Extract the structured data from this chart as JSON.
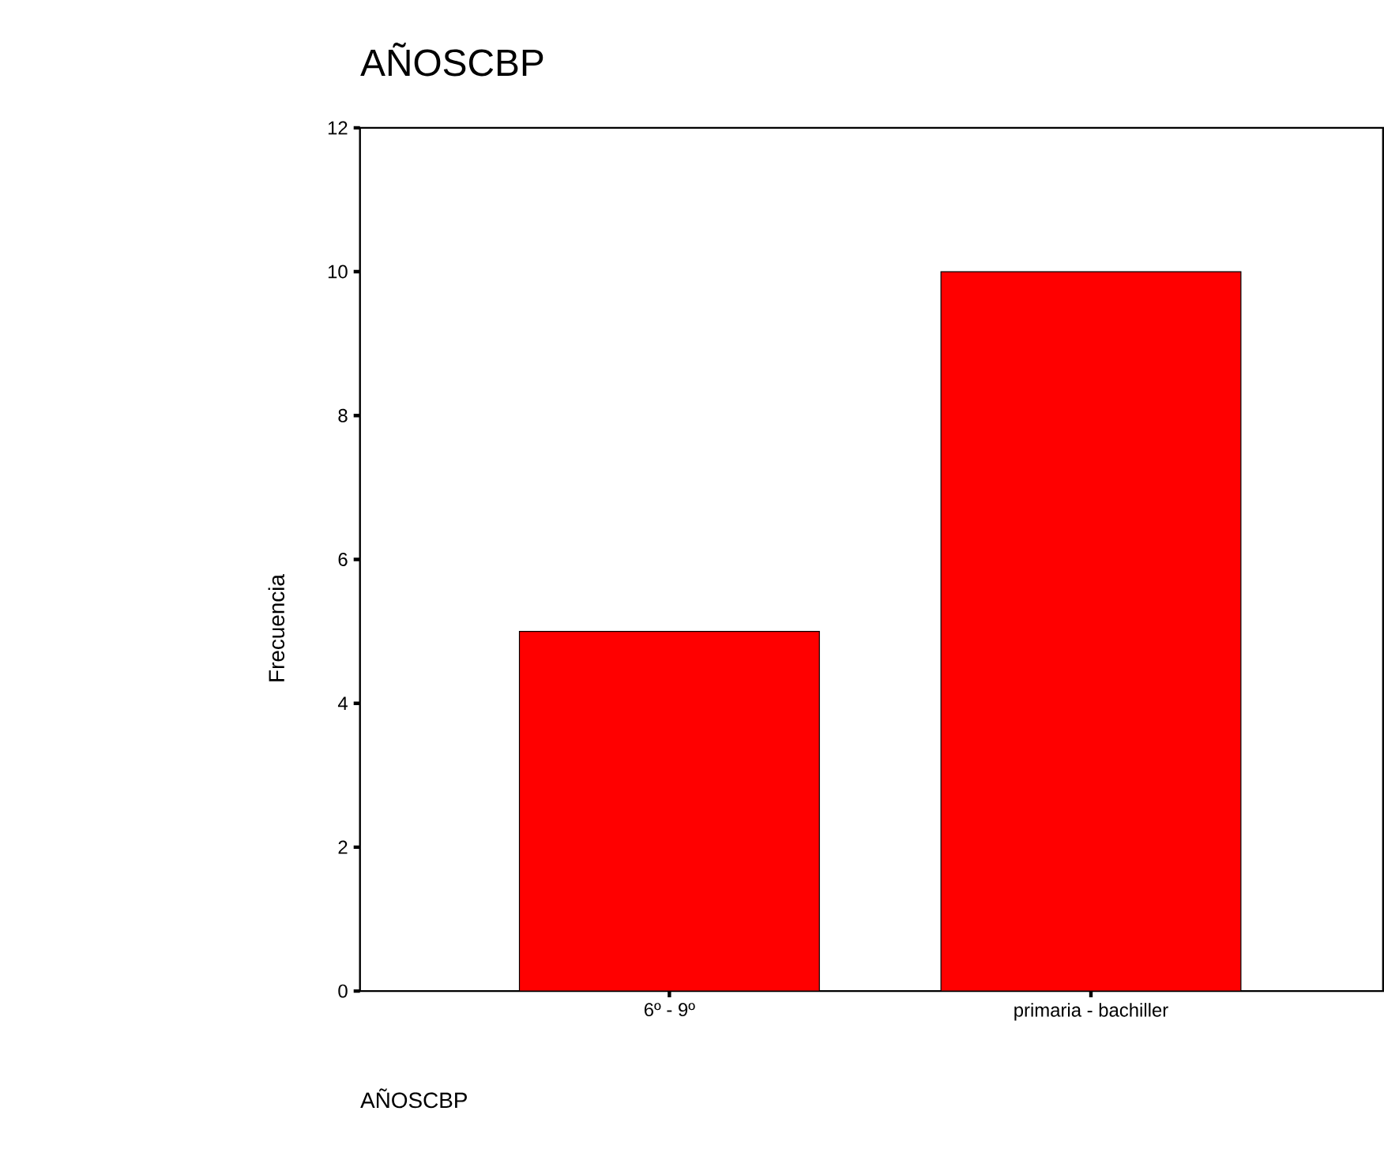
{
  "chart_data": {
    "type": "bar",
    "title": "AÑOSCBP",
    "xlabel": "AÑOSCBP",
    "ylabel": "Frecuencia",
    "categories": [
      "6º - 9º",
      "primaria - bachiller"
    ],
    "values": [
      5,
      10
    ],
    "color": "#ff0000",
    "ylim": [
      0,
      12
    ],
    "yticks": [
      0,
      2,
      4,
      6,
      8,
      10,
      12
    ]
  }
}
